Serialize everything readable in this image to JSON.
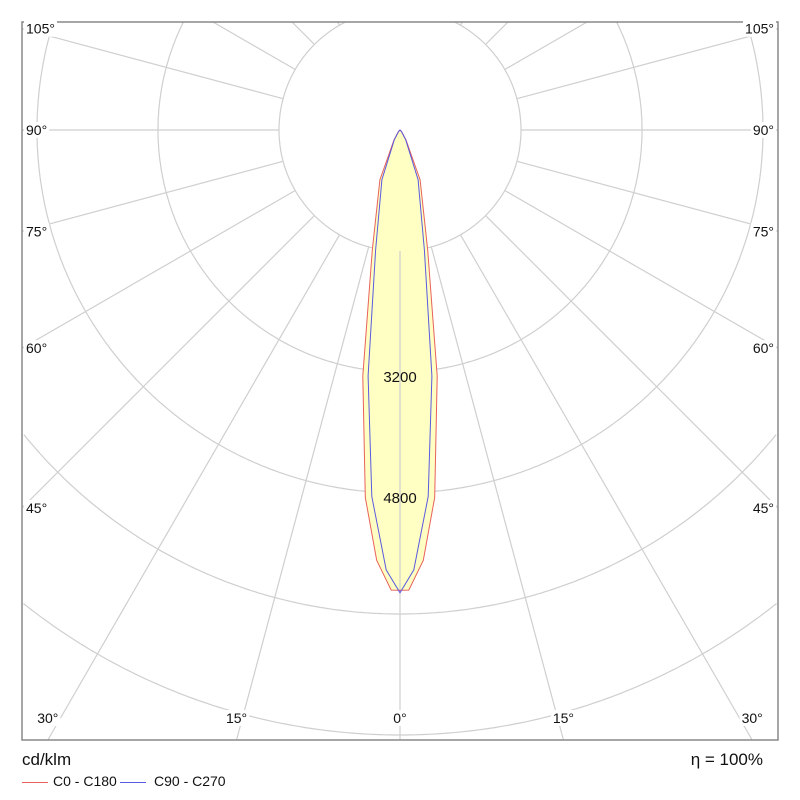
{
  "chart_data": {
    "type": "polar",
    "unit_label": "cd/klm",
    "efficiency_label": "η = 100%",
    "ring_step": 1600,
    "ring_labels": [
      "3200",
      "4800"
    ],
    "ring_label_values": [
      3200,
      4800
    ],
    "angle_labels_left": [
      "105°",
      "90°",
      "75°",
      "60°",
      "45°",
      "30°",
      "15°"
    ],
    "angle_labels_right": [
      "105°",
      "90°",
      "75°",
      "60°",
      "45°",
      "30°",
      "15°"
    ],
    "angle_values": [
      105,
      90,
      75,
      60,
      45,
      30,
      15
    ],
    "zero_label": "0°",
    "grid": true,
    "legend_placement": "bottom-left",
    "series": [
      {
        "name": "C0 - C180",
        "color": "#e8615a",
        "points": [
          [
            0,
            6085
          ],
          [
            1.1,
            6085
          ],
          [
            3.1,
            5700
          ],
          [
            5.4,
            4880
          ],
          [
            8.6,
            3290
          ],
          [
            13,
            1630
          ],
          [
            22,
            710
          ],
          [
            31,
            155
          ],
          [
            45,
            30
          ],
          [
            90,
            0
          ]
        ]
      },
      {
        "name": "C90 - C270",
        "color": "#5a5ae0",
        "points": [
          [
            0,
            6120
          ],
          [
            1.8,
            5820
          ],
          [
            4.4,
            4860
          ],
          [
            7.4,
            3280
          ],
          [
            11.5,
            1620
          ],
          [
            20,
            700
          ],
          [
            30,
            150
          ],
          [
            45,
            25
          ],
          [
            90,
            0
          ]
        ]
      }
    ],
    "fill_color": "#ffffc4"
  }
}
